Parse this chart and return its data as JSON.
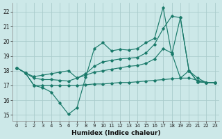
{
  "background_color": "#cce8e8",
  "grid_color": "#aacccc",
  "line_color": "#1a7a6a",
  "xlabel": "Humidex (Indice chaleur)",
  "xlim": [
    -0.5,
    23.5
  ],
  "ylim": [
    14.6,
    22.6
  ],
  "xticks": [
    0,
    1,
    2,
    3,
    4,
    5,
    6,
    7,
    8,
    9,
    10,
    11,
    12,
    13,
    14,
    15,
    16,
    17,
    18,
    19,
    20,
    21,
    22,
    23
  ],
  "yticks": [
    15,
    16,
    17,
    18,
    19,
    20,
    21,
    22
  ],
  "line1_x": [
    0,
    1,
    2,
    3,
    4,
    5,
    6,
    7,
    8,
    9,
    10,
    11,
    12,
    13,
    14,
    15,
    16,
    17,
    18,
    19,
    20,
    21,
    22,
    23
  ],
  "line1_y": [
    18.2,
    17.85,
    17.0,
    16.85,
    16.55,
    15.8,
    15.05,
    15.5,
    17.55,
    19.5,
    19.9,
    19.35,
    19.45,
    19.4,
    19.5,
    19.9,
    20.2,
    22.3,
    19.1,
    21.6,
    18.0,
    17.25,
    17.2,
    17.2
  ],
  "line2_x": [
    0,
    1,
    2,
    3,
    4,
    5,
    6,
    7,
    8,
    9,
    10,
    11,
    12,
    13,
    14,
    15,
    16,
    17,
    18,
    19,
    20,
    21,
    22,
    23
  ],
  "line2_y": [
    18.2,
    17.85,
    17.0,
    17.0,
    17.0,
    17.0,
    17.0,
    17.0,
    17.05,
    17.1,
    17.1,
    17.15,
    17.2,
    17.2,
    17.25,
    17.3,
    17.35,
    17.4,
    17.45,
    17.5,
    17.5,
    17.35,
    17.2,
    17.2
  ],
  "line3_x": [
    0,
    1,
    2,
    3,
    4,
    5,
    6,
    7,
    8,
    9,
    10,
    11,
    12,
    13,
    14,
    15,
    16,
    17,
    18,
    19,
    20,
    21,
    22,
    23
  ],
  "line3_y": [
    18.2,
    17.85,
    17.6,
    17.7,
    17.8,
    17.9,
    18.0,
    17.5,
    17.8,
    18.3,
    18.6,
    18.7,
    18.8,
    18.85,
    18.9,
    19.2,
    19.8,
    20.85,
    21.7,
    21.6,
    18.0,
    17.25,
    17.2,
    17.2
  ],
  "line4_x": [
    0,
    1,
    2,
    3,
    4,
    5,
    6,
    7,
    8,
    9,
    10,
    11,
    12,
    13,
    14,
    15,
    16,
    17,
    18,
    19,
    20,
    21,
    22,
    23
  ],
  "line4_y": [
    18.2,
    17.85,
    17.5,
    17.4,
    17.4,
    17.35,
    17.3,
    17.5,
    17.7,
    17.9,
    18.0,
    18.1,
    18.2,
    18.3,
    18.35,
    18.5,
    18.8,
    19.5,
    19.2,
    17.5,
    18.0,
    17.5,
    17.2,
    17.2
  ]
}
